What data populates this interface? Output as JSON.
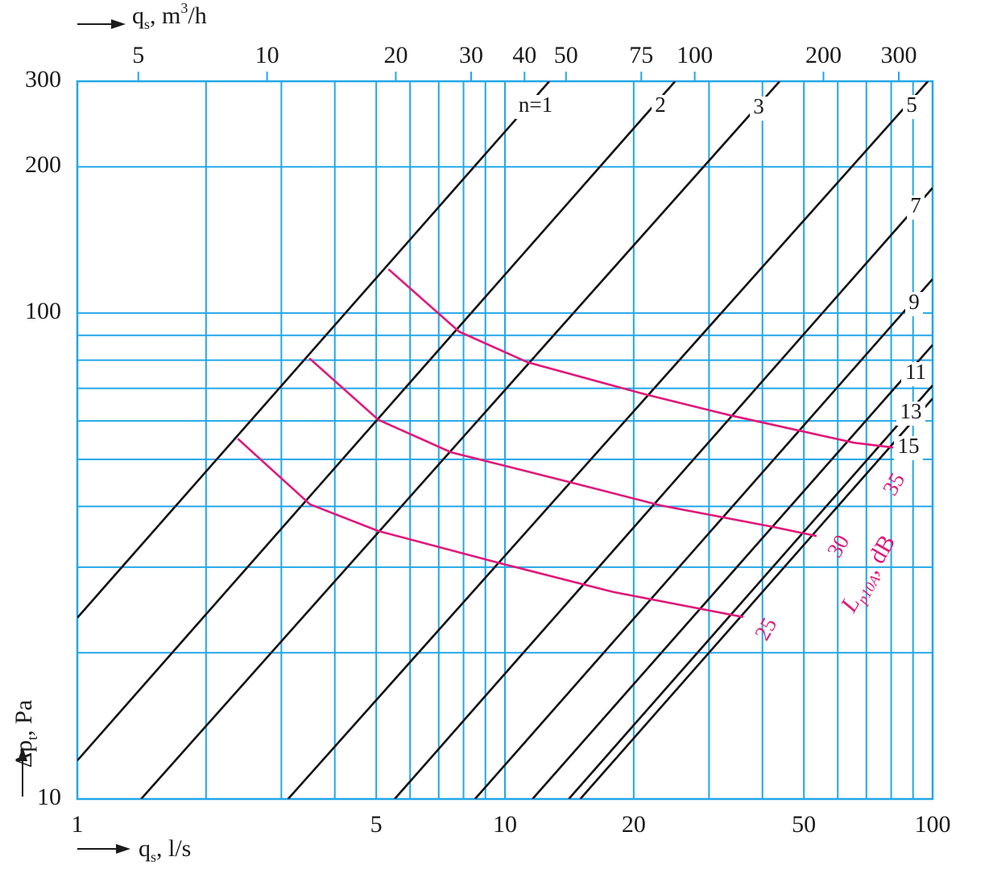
{
  "chart_data": {
    "type": "line",
    "x_label": [
      "q",
      "s",
      ", l/s"
    ],
    "x2_label": [
      "q",
      "s",
      ", m",
      "3",
      "/h"
    ],
    "y_label": [
      "Δp",
      "t",
      ", Pa"
    ],
    "noise_label": [
      "L",
      "p10A",
      ", dB"
    ],
    "log_x": true,
    "log_y": true,
    "xlim": [
      1,
      100
    ],
    "xticks": [
      1,
      5,
      10,
      20,
      50,
      100
    ],
    "x2lim": [
      3.6,
      360
    ],
    "x2ticks": [
      5,
      10,
      20,
      30,
      40,
      50,
      75,
      100,
      200,
      300
    ],
    "ylim": [
      10,
      300
    ],
    "yticks": [
      10,
      100,
      200,
      300
    ],
    "x_grid": [
      2,
      3,
      4,
      5,
      6,
      7,
      8,
      9,
      10,
      20,
      30,
      40,
      50,
      60,
      70,
      80,
      90
    ],
    "y_grid": [
      20,
      30,
      40,
      50,
      60,
      70,
      80,
      90,
      100,
      200
    ],
    "grid": true,
    "grid_color": "#22a7e8",
    "series": [
      {
        "name": "n=1",
        "color": "#111111",
        "x": [
          1,
          12.7
        ],
        "values": [
          23.6,
          300
        ]
      },
      {
        "name": "2",
        "color": "#111111",
        "x": [
          1,
          25
        ],
        "values": [
          12,
          300
        ]
      },
      {
        "name": "3",
        "color": "#111111",
        "x": [
          1.41,
          43.9
        ],
        "values": [
          10,
          300
        ]
      },
      {
        "name": "5",
        "color": "#111111",
        "x": [
          3.11,
          97.5
        ],
        "values": [
          10,
          300
        ]
      },
      {
        "name": "7",
        "color": "#111111",
        "x": [
          5.52,
          100
        ],
        "values": [
          10,
          181
        ]
      },
      {
        "name": "9",
        "color": "#111111",
        "x": [
          8.51,
          100
        ],
        "values": [
          10,
          117.5
        ]
      },
      {
        "name": "11",
        "color": "#111111",
        "x": [
          11.6,
          100
        ],
        "values": [
          10,
          86
        ]
      },
      {
        "name": "13",
        "color": "#111111",
        "x": [
          14.1,
          100
        ],
        "values": [
          10,
          71
        ]
      },
      {
        "name": "15",
        "color": "#111111",
        "x": [
          15,
          100
        ],
        "values": [
          10,
          66.7
        ]
      },
      {
        "name": "25",
        "color": "#e0187a",
        "x": [
          2.38,
          3.5,
          5.06,
          9.7,
          17.8,
          35.9
        ],
        "values": [
          55,
          40.4,
          35.6,
          30.6,
          26.7,
          23.7
        ]
      },
      {
        "name": "30",
        "color": "#e0187a",
        "x": [
          3.5,
          5.06,
          7.48,
          14.3,
          23.1,
          42.4,
          53.3
        ],
        "values": [
          80.5,
          60.3,
          51.7,
          44.8,
          40.2,
          36.3,
          34.8
        ]
      },
      {
        "name": "35",
        "color": "#e0187a",
        "x": [
          5.36,
          7.81,
          11.3,
          21.2,
          33.4,
          65.4,
          80.5
        ],
        "values": [
          122.8,
          91.6,
          79.2,
          68.1,
          61.7,
          54.1,
          52.9
        ]
      }
    ]
  }
}
